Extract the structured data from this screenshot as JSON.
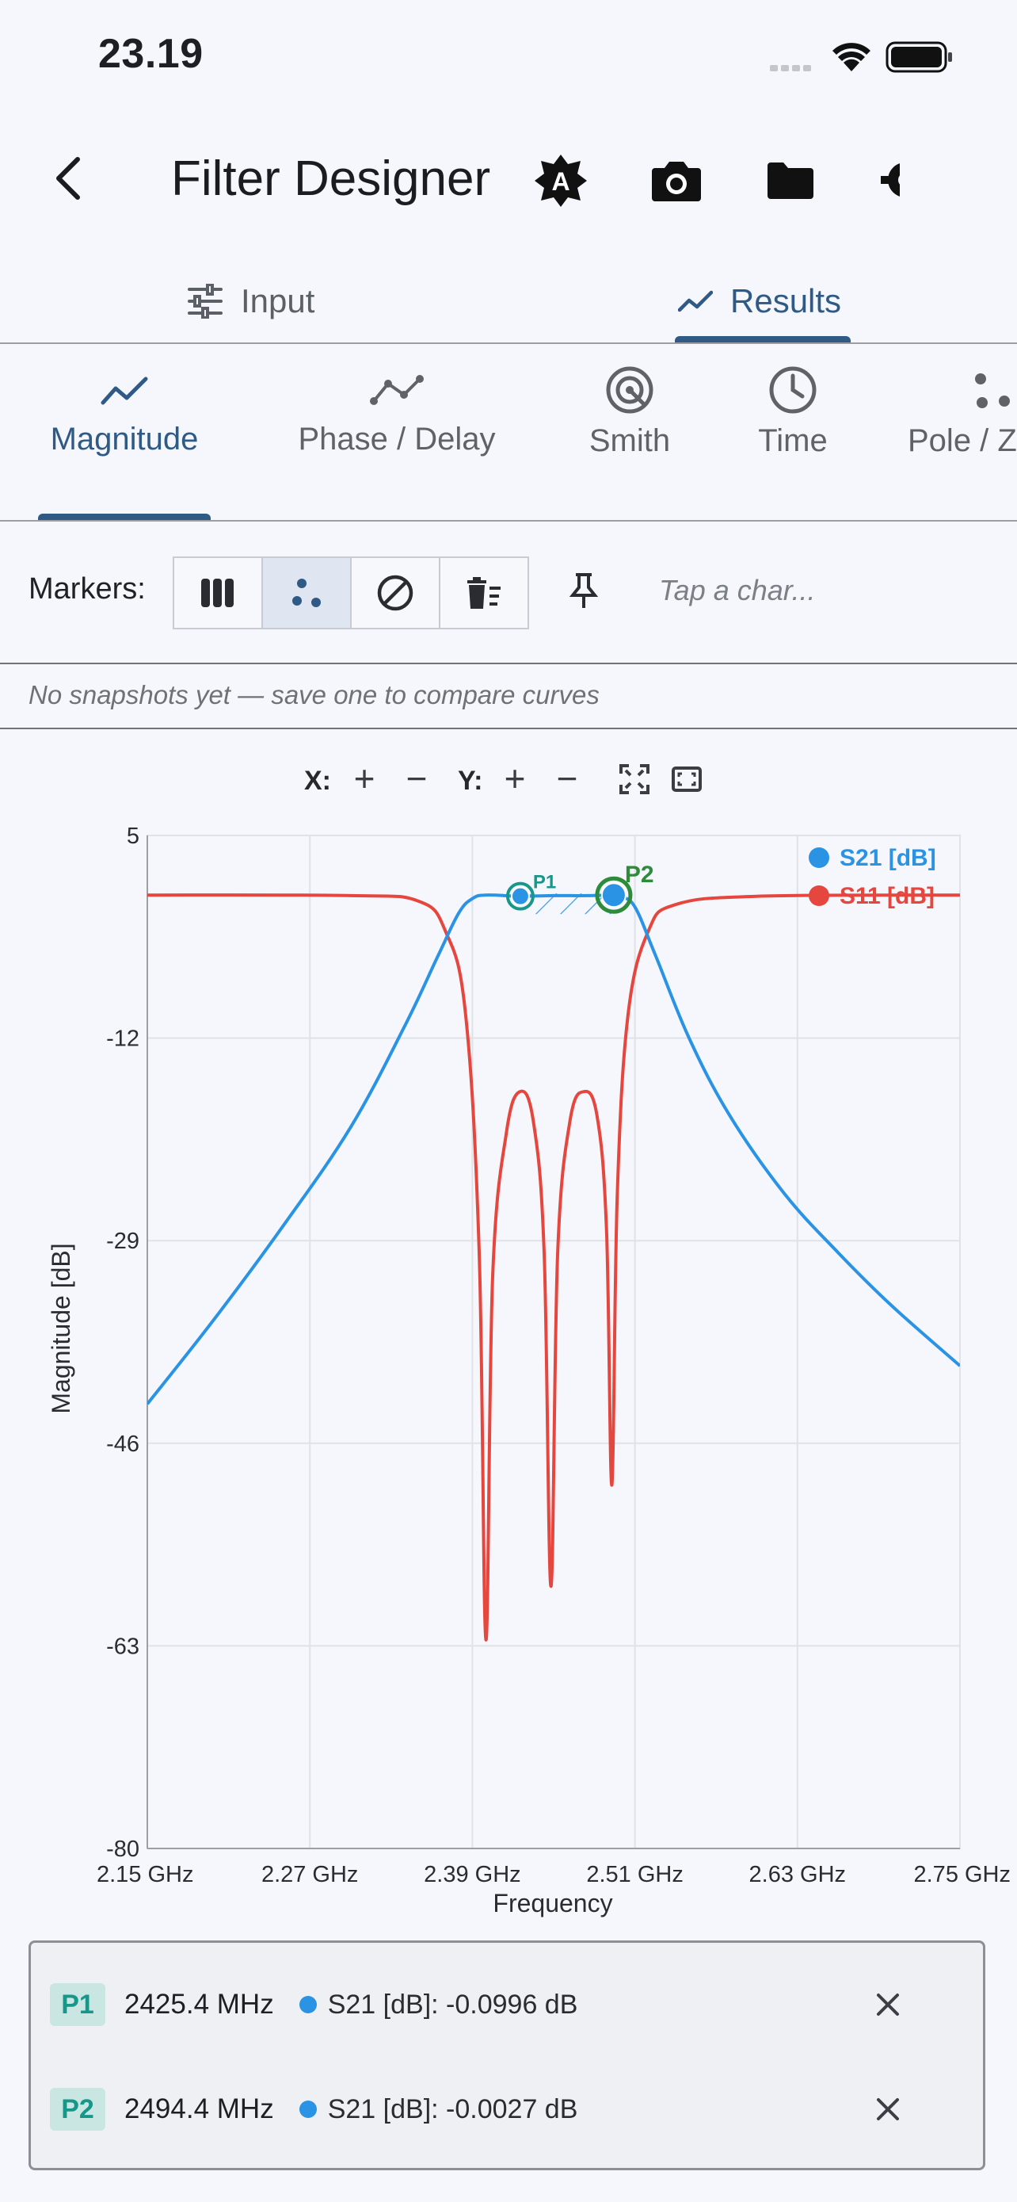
{
  "status_bar": {
    "time": "23.19"
  },
  "app_bar": {
    "title": "Filter Designer"
  },
  "main_tabs": [
    {
      "label": "Input",
      "icon": "sliders-icon",
      "active": false
    },
    {
      "label": "Results",
      "icon": "trending-icon",
      "active": true
    }
  ],
  "sub_tabs": [
    {
      "label": "Magnitude",
      "icon": "trending-icon",
      "active": true
    },
    {
      "label": "Phase / Delay",
      "icon": "polyline-icon",
      "active": false
    },
    {
      "label": "Smith",
      "icon": "smith-icon",
      "active": false
    },
    {
      "label": "Time",
      "icon": "clock-icon",
      "active": false
    },
    {
      "label": "Pole / Z",
      "icon": "scatter-icon",
      "active": false
    }
  ],
  "markers": {
    "label": "Markers:",
    "hint": "Tap a char...",
    "selected_mode": "points"
  },
  "snapshot_note": "No snapshots yet — save one to compare curves",
  "zoom": {
    "x_label": "X:",
    "y_label": "Y:",
    "plus": "+",
    "minus": "−"
  },
  "chart_data": {
    "type": "line",
    "xlabel": "Frequency",
    "ylabel": "Magnitude [dB]",
    "x_unit": "GHz",
    "xlim": [
      2.15,
      2.75
    ],
    "ylim": [
      -80,
      5
    ],
    "x_ticks": [
      "2.15 GHz",
      "2.27 GHz",
      "2.39 GHz",
      "2.51 GHz",
      "2.63 GHz",
      "2.75 GHz"
    ],
    "y_ticks": [
      "5",
      "-12",
      "-29",
      "-46",
      "-63",
      "-80"
    ],
    "y_tick_values": [
      5,
      -12,
      -29,
      -46,
      -63,
      -80
    ],
    "x_tick_values": [
      2.15,
      2.27,
      2.39,
      2.51,
      2.63,
      2.75
    ],
    "grid": true,
    "legend_position": "top-right",
    "series": [
      {
        "name": "S21 [dB]",
        "color": "#2a93e4",
        "points": [
          [
            2.15,
            -42.7
          ],
          [
            2.2,
            -35.5
          ],
          [
            2.25,
            -27.8
          ],
          [
            2.3,
            -19.5
          ],
          [
            2.34,
            -11
          ],
          [
            2.365,
            -5
          ],
          [
            2.38,
            -1.5
          ],
          [
            2.39,
            -0.3
          ],
          [
            2.4,
            0
          ],
          [
            2.425,
            -0.1
          ],
          [
            2.45,
            -0.05
          ],
          [
            2.475,
            -0.05
          ],
          [
            2.494,
            0
          ],
          [
            2.5,
            -0.15
          ],
          [
            2.51,
            -1
          ],
          [
            2.525,
            -5
          ],
          [
            2.55,
            -12
          ],
          [
            2.58,
            -18.5
          ],
          [
            2.62,
            -25
          ],
          [
            2.66,
            -30
          ],
          [
            2.7,
            -34.5
          ],
          [
            2.75,
            -39.5
          ]
        ]
      },
      {
        "name": "S11 [dB]",
        "color": "#e5463e",
        "points": [
          [
            2.15,
            0
          ],
          [
            2.3,
            -0.05
          ],
          [
            2.35,
            -0.5
          ],
          [
            2.37,
            -3
          ],
          [
            2.385,
            -10
          ],
          [
            2.395,
            -30
          ],
          [
            2.4,
            -62.5
          ],
          [
            2.405,
            -32
          ],
          [
            2.415,
            -20
          ],
          [
            2.425,
            -16.5
          ],
          [
            2.435,
            -19
          ],
          [
            2.443,
            -30
          ],
          [
            2.448,
            -58
          ],
          [
            2.453,
            -30
          ],
          [
            2.462,
            -19
          ],
          [
            2.472,
            -16.5
          ],
          [
            2.482,
            -18.5
          ],
          [
            2.489,
            -28
          ],
          [
            2.493,
            -49.5
          ],
          [
            2.497,
            -25
          ],
          [
            2.505,
            -10
          ],
          [
            2.52,
            -3
          ],
          [
            2.54,
            -0.8
          ],
          [
            2.6,
            -0.1
          ],
          [
            2.75,
            0
          ]
        ]
      }
    ],
    "markers": [
      {
        "label": "P1",
        "x": 2.4254,
        "y": -0.0996
      },
      {
        "label": "P2",
        "x": 2.4944,
        "y": -0.0027
      }
    ],
    "shaded_band": [
      2.4254,
      2.4944
    ]
  },
  "readouts": [
    {
      "marker": "P1",
      "freq": "2425.4 MHz",
      "value": "S21 [dB]: -0.0996 dB"
    },
    {
      "marker": "P2",
      "freq": "2494.4 MHz",
      "value": "S21 [dB]: -0.0027 dB"
    }
  ],
  "colors": {
    "accent": "#2f5a86",
    "s21": "#2a93e4",
    "s11": "#e5463e",
    "marker_teal": "#17978a",
    "marker_green": "#2c8c3a"
  }
}
